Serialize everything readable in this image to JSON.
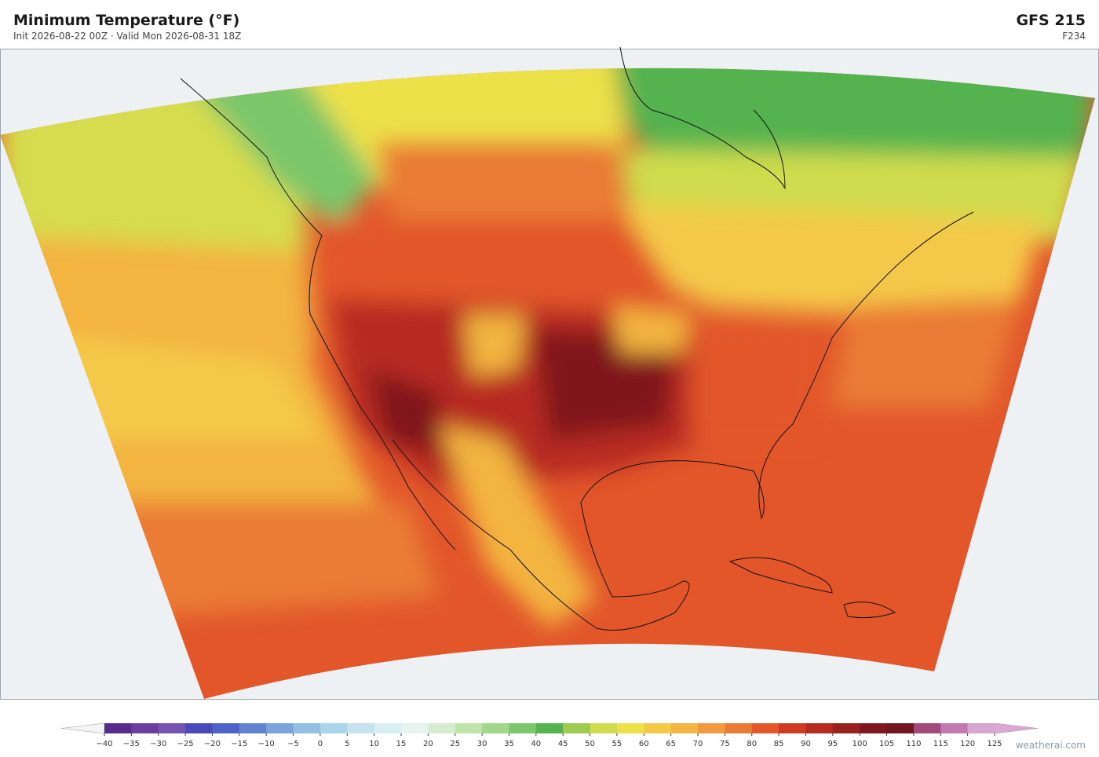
{
  "header": {
    "title": "Minimum Temperature  (°F)",
    "subtitle": "Init 2026-08-22 00Z  ·  Valid Mon 2026-08-31 18Z",
    "model": "GFS  215",
    "forecast_hour": "F234"
  },
  "colorbar": {
    "ticks": [
      "−40",
      "−35",
      "−30",
      "−25",
      "−20",
      "−15",
      "−10",
      "−5",
      "0",
      "5",
      "10",
      "15",
      "20",
      "25",
      "30",
      "35",
      "40",
      "45",
      "50",
      "55",
      "60",
      "65",
      "70",
      "75",
      "80",
      "85",
      "90",
      "95",
      "100",
      "105",
      "110",
      "115",
      "120",
      "125"
    ],
    "colors": [
      "#5a2b8e",
      "#6b3fa1",
      "#7453b2",
      "#4a49b9",
      "#4d63c9",
      "#5f83d1",
      "#7ba4dc",
      "#93bfe3",
      "#abd5ea",
      "#c4e3ef",
      "#d9eef3",
      "#e7f4ee",
      "#d6ecd0",
      "#bfe3a8",
      "#a0d789",
      "#7cc66b",
      "#55b350",
      "#9ccb4e",
      "#cfdc4e",
      "#ece148",
      "#f4c948",
      "#f3b441",
      "#ef9a3d",
      "#ea7b35",
      "#e2562a",
      "#cf3a25",
      "#b72a22",
      "#98201f",
      "#80161f",
      "#731420",
      "#a44a7a",
      "#c07ab1",
      "#d6a5d0"
    ],
    "under_color": "#f4f4f4",
    "over_color": "#dba8d4"
  },
  "footer": {
    "credit": "weatherai.com"
  }
}
